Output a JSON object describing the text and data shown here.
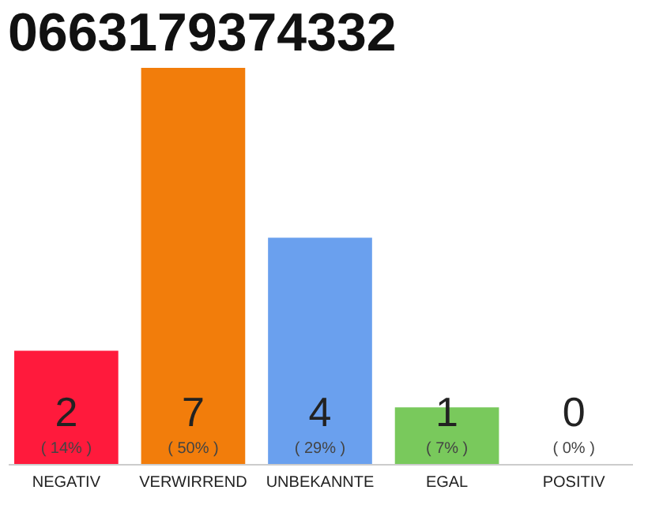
{
  "chart_data": {
    "type": "bar",
    "title": "0663179374332",
    "categories": [
      "NEGATIV",
      "VERWIRREND",
      "UNBEKANNTE",
      "EGAL",
      "POSITIV"
    ],
    "values": [
      2,
      7,
      4,
      1,
      0
    ],
    "colors": [
      "#ff1a3c",
      "#f27d0b",
      "#6aa0ee",
      "#79c95c",
      "#e0e0e0"
    ],
    "data_labels": true,
    "annotations": [
      "( 14% )",
      "( 50% )",
      "( 29% )",
      "( 7% )",
      "( 0% )"
    ],
    "tick_labels": "x",
    "grid": false
  }
}
